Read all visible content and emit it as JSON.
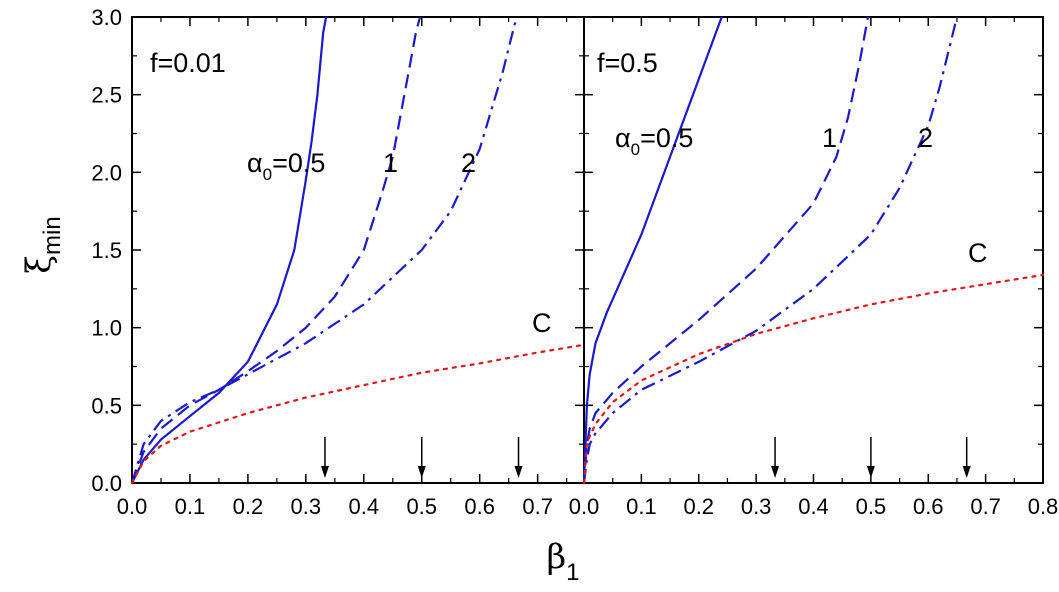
{
  "chart_data": {
    "type": "line",
    "xlabel": "β",
    "xlabel_sub": "1",
    "ylabel": "ξ",
    "ylabel_sub": "min",
    "ylim": [
      0,
      3.0
    ],
    "yticks": [
      "0.0",
      "0.5",
      "1.0",
      "1.5",
      "2.0",
      "2.5",
      "3.0"
    ],
    "colors": {
      "alpha_curves": "#1a1acc",
      "C_curve": "#e01818",
      "frame": "#000000"
    },
    "panels": [
      {
        "label": "f=0.01",
        "xlim": [
          0,
          0.78
        ],
        "xticks": [
          "0.0",
          "0.1",
          "0.2",
          "0.3",
          "0.4",
          "0.5",
          "0.6",
          "0.7"
        ],
        "arrows_x": [
          0.333,
          0.5,
          0.667
        ],
        "series": [
          {
            "name": "α0=0.5",
            "name_main": "α",
            "name_sub": "0",
            "name_tail": "=0.5",
            "style": "solid",
            "x": [
              0,
              0.02,
              0.05,
              0.1,
              0.15,
              0.2,
              0.25,
              0.28,
              0.3,
              0.31,
              0.32,
              0.325,
              0.33,
              0.335
            ],
            "y": [
              0,
              0.15,
              0.28,
              0.43,
              0.58,
              0.78,
              1.15,
              1.5,
              1.95,
              2.2,
              2.5,
              2.7,
              2.9,
              3.0
            ]
          },
          {
            "name": "1",
            "style": "dashed",
            "x": [
              0,
              0.02,
              0.05,
              0.1,
              0.15,
              0.2,
              0.25,
              0.3,
              0.35,
              0.4,
              0.43,
              0.45,
              0.47,
              0.48,
              0.49,
              0.497
            ],
            "y": [
              0,
              0.2,
              0.35,
              0.5,
              0.6,
              0.72,
              0.85,
              1.0,
              1.2,
              1.5,
              1.85,
              2.1,
              2.5,
              2.7,
              2.9,
              3.0
            ]
          },
          {
            "name": "2",
            "style": "dashdot",
            "x": [
              0,
              0.02,
              0.05,
              0.1,
              0.15,
              0.2,
              0.3,
              0.4,
              0.5,
              0.55,
              0.6,
              0.62,
              0.64,
              0.65,
              0.66,
              0.665
            ],
            "y": [
              0,
              0.25,
              0.4,
              0.52,
              0.6,
              0.7,
              0.9,
              1.15,
              1.5,
              1.75,
              2.15,
              2.4,
              2.65,
              2.8,
              2.95,
              3.0
            ]
          },
          {
            "name": "C",
            "style": "dotted",
            "x": [
              0,
              0.02,
              0.05,
              0.1,
              0.2,
              0.3,
              0.4,
              0.5,
              0.6,
              0.7,
              0.78
            ],
            "y": [
              0,
              0.14,
              0.24,
              0.33,
              0.45,
              0.55,
              0.63,
              0.71,
              0.77,
              0.84,
              0.89
            ]
          }
        ]
      },
      {
        "label": "f=0.5",
        "xlim": [
          0,
          0.8
        ],
        "xticks": [
          "0.0",
          "0.1",
          "0.2",
          "0.3",
          "0.4",
          "0.5",
          "0.6",
          "0.7",
          "0.8"
        ],
        "arrows_x": [
          0.333,
          0.5,
          0.667
        ],
        "series": [
          {
            "name": "α0=0.5",
            "name_main": "α",
            "name_sub": "0",
            "name_tail": "=0.5",
            "style": "solid",
            "x": [
              0,
              0.005,
              0.01,
              0.02,
              0.04,
              0.07,
              0.1,
              0.13,
              0.16,
              0.19,
              0.22,
              0.24
            ],
            "y": [
              0,
              0.5,
              0.7,
              0.9,
              1.1,
              1.35,
              1.6,
              1.9,
              2.2,
              2.5,
              2.8,
              3.0
            ]
          },
          {
            "name": "1",
            "style": "dashed",
            "x": [
              0,
              0.005,
              0.01,
              0.02,
              0.05,
              0.1,
              0.2,
              0.3,
              0.4,
              0.44,
              0.46,
              0.48,
              0.49,
              0.495
            ],
            "y": [
              0,
              0.25,
              0.35,
              0.45,
              0.58,
              0.75,
              1.05,
              1.38,
              1.8,
              2.1,
              2.35,
              2.7,
              2.9,
              3.0
            ]
          },
          {
            "name": "2",
            "style": "dashdot",
            "x": [
              0,
              0.005,
              0.01,
              0.02,
              0.05,
              0.1,
              0.2,
              0.3,
              0.4,
              0.5,
              0.55,
              0.6,
              0.62,
              0.64,
              0.65
            ],
            "y": [
              0,
              0.15,
              0.25,
              0.32,
              0.45,
              0.6,
              0.78,
              0.98,
              1.25,
              1.6,
              1.9,
              2.3,
              2.55,
              2.85,
              3.0
            ]
          },
          {
            "name": "C",
            "style": "dotted",
            "x": [
              0,
              0.005,
              0.01,
              0.02,
              0.05,
              0.1,
              0.2,
              0.3,
              0.4,
              0.5,
              0.6,
              0.7,
              0.8
            ],
            "y": [
              0,
              0.25,
              0.3,
              0.38,
              0.52,
              0.66,
              0.83,
              0.96,
              1.06,
              1.15,
              1.22,
              1.28,
              1.34
            ]
          }
        ]
      }
    ]
  }
}
